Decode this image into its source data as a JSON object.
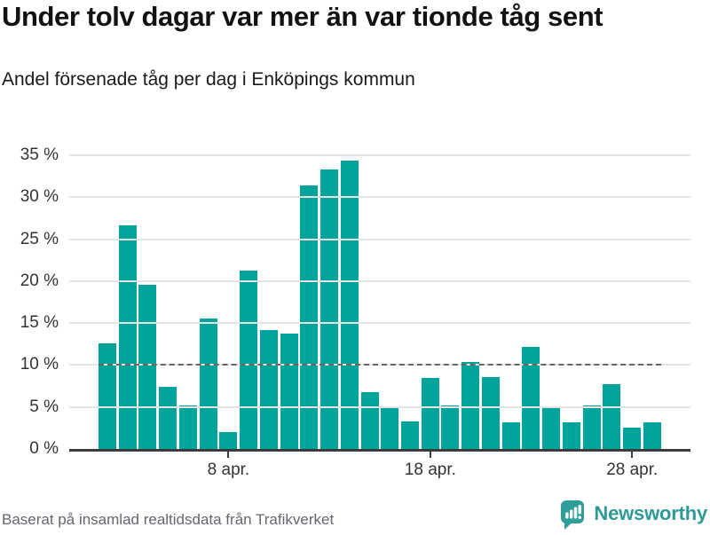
{
  "header": {
    "title": "Under tolv dagar var mer än var tionde tåg sent",
    "subtitle": "Andel försenade tåg per dag i Enköpings kommun"
  },
  "footer": {
    "source": "Baserat på insamlad realtidsdata från Trafikverket",
    "brand": "Newsworthy"
  },
  "colors": {
    "bar": "#00a49d",
    "reference_line": "#666666",
    "gridline": "#e4e4e4",
    "axis": "#3c3c3c",
    "brand_teal": "#2d9a96",
    "logo_teal": "#2f9e99"
  },
  "chart_data": {
    "type": "bar",
    "title": "Under tolv dagar var mer än var tionde tåg sent",
    "subtitle": "Andel försenade tåg per dag i Enköpings kommun",
    "unit": "%",
    "categories": [
      "2 apr.",
      "3 apr.",
      "4 apr.",
      "5 apr.",
      "6 apr.",
      "7 apr.",
      "8 apr.",
      "9 apr.",
      "10 apr.",
      "11 apr.",
      "12 apr.",
      "13 apr.",
      "14 apr.",
      "15 apr.",
      "16 apr.",
      "17 apr.",
      "18 apr.",
      "19 apr.",
      "20 apr.",
      "21 apr.",
      "22 apr.",
      "23 apr.",
      "24 apr.",
      "25 apr.",
      "26 apr.",
      "27 apr.",
      "28 apr.",
      "29 apr."
    ],
    "values": [
      12.6,
      26.7,
      19.6,
      7.4,
      5.2,
      15.5,
      2.0,
      21.3,
      14.2,
      13.8,
      31.4,
      33.3,
      34.4,
      6.8,
      5.1,
      3.3,
      8.5,
      5.2,
      10.4,
      8.6,
      3.2,
      12.2,
      5.1,
      3.2,
      5.2,
      7.7,
      2.5,
      3.2
    ],
    "ylim": [
      0,
      35
    ],
    "yticks": [
      0,
      5,
      10,
      15,
      20,
      25,
      30,
      35
    ],
    "ytick_labels": [
      "0 %",
      "5 %",
      "10 %",
      "15 %",
      "20 %",
      "25 %",
      "30 %",
      "35 %"
    ],
    "xtick_labels": [
      "8 apr.",
      "18 apr.",
      "28 apr."
    ],
    "xtick_indices": [
      6,
      16,
      26
    ],
    "reference_line": 10,
    "grid": true,
    "legend": false,
    "xlabel": "",
    "ylabel": ""
  }
}
